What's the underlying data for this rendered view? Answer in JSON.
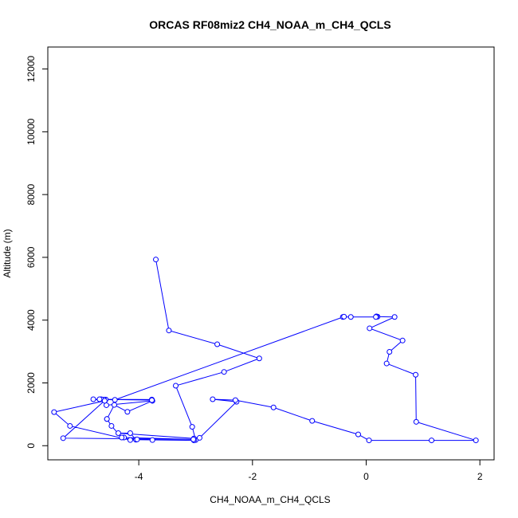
{
  "chart_data": {
    "type": "line",
    "title": "ORCAS RF08miz2 CH4_NOAA_m_CH4_QCLS",
    "xlabel": "CH4_NOAA_m_CH4_QCLS",
    "ylabel": "Altitude (m)",
    "xlim": [
      -5.6,
      2.25
    ],
    "ylim": [
      -450,
      12700
    ],
    "xticks": [
      -4,
      -2,
      0,
      2
    ],
    "yticks": [
      0,
      2000,
      4000,
      6000,
      8000,
      10000,
      12000
    ],
    "grid": false,
    "legend": "none",
    "markers": "open-circle",
    "series_color": "#0000ff",
    "series": [
      {
        "x": [
          -3.7,
          -3.47,
          -2.62,
          -1.88,
          -2.5,
          -3.35,
          -3.06,
          -3.0,
          -2.93,
          -2.28,
          -2.7,
          -2.3,
          -1.63,
          -0.95,
          -0.14,
          0.05,
          1.15,
          1.93,
          0.88,
          0.87,
          0.36,
          0.41,
          0.64,
          0.06,
          0.5,
          0.2,
          0.18,
          0.17,
          -0.27,
          -0.41,
          -0.39,
          -4.42,
          -4.58,
          -5.33,
          -3.04,
          -3.03,
          -4.36,
          -4.15,
          -4.05,
          -3.03,
          -3.04,
          -4.26,
          -4.3,
          -4.48,
          -4.56,
          -4.56,
          -4.43,
          -4.2,
          -3.76,
          -4.57,
          -4.61,
          -4.66,
          -4.69,
          -3.77,
          -3.77,
          -4.8,
          -4.6,
          -5.49,
          -5.21,
          -4.15,
          -4.03,
          -3.76
        ],
        "y": [
          5930,
          3670,
          3230,
          2780,
          2350,
          1910,
          600,
          180,
          250,
          1400,
          1480,
          1450,
          1220,
          790,
          360,
          170,
          170,
          170,
          760,
          2260,
          2620,
          2990,
          3350,
          3740,
          4100,
          4110,
          4120,
          4100,
          4100,
          4100,
          4110,
          1460,
          1470,
          240,
          200,
          230,
          400,
          400,
          190,
          170,
          200,
          260,
          260,
          630,
          850,
          850,
          1300,
          1080,
          1430,
          1290,
          1470,
          1480,
          1480,
          1470,
          1450,
          1480,
          1430,
          1070,
          630,
          180,
          200,
          180
        ]
      }
    ]
  }
}
